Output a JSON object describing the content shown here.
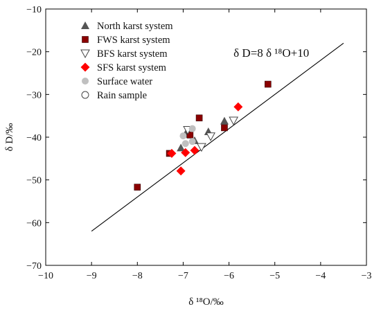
{
  "chart_data": {
    "type": "scatter",
    "title": "",
    "xlabel": "δ ¹⁸O/‰",
    "ylabel": "δ D/‰",
    "xlim": [
      -10,
      -3
    ],
    "ylim": [
      -70,
      -10
    ],
    "xticks": [
      -10,
      -9,
      -8,
      -7,
      -6,
      -5,
      -4,
      -3
    ],
    "yticks": [
      -70,
      -60,
      -50,
      -40,
      -30,
      -20,
      -10
    ],
    "xtick_labels": [
      "−10",
      "−9",
      "−8",
      "−7",
      "−6",
      "−5",
      "−4",
      "−3"
    ],
    "ytick_labels": [
      "−70",
      "−60",
      "−50",
      "−40",
      "−30",
      "−20",
      "−10"
    ],
    "grid": false,
    "legend_position": "top-left",
    "series": [
      {
        "name": "North karst system",
        "marker": "triangle-filled",
        "color": "#555555",
        "points": [
          [
            -7.05,
            -42.5
          ],
          [
            -6.95,
            -39.3
          ],
          [
            -6.75,
            -40.8
          ],
          [
            -6.45,
            -38.7
          ],
          [
            -6.1,
            -36.2
          ]
        ]
      },
      {
        "name": "FWS karst system",
        "marker": "square-filled",
        "color": "#8b0000",
        "points": [
          [
            -8.0,
            -51.7
          ],
          [
            -7.3,
            -43.8
          ],
          [
            -6.85,
            -39.5
          ],
          [
            -6.65,
            -35.5
          ],
          [
            -6.1,
            -37.8
          ],
          [
            -5.15,
            -27.6
          ]
        ]
      },
      {
        "name": "BFS karst system",
        "marker": "triangle-open-down",
        "color": "#444444",
        "points": [
          [
            -6.9,
            -38.3
          ],
          [
            -6.6,
            -42.3
          ],
          [
            -6.4,
            -39.8
          ],
          [
            -5.9,
            -36.1
          ]
        ]
      },
      {
        "name": "SFS karst system",
        "marker": "diamond-filled",
        "color": "#ff0000",
        "points": [
          [
            -7.25,
            -43.8
          ],
          [
            -7.05,
            -47.9
          ],
          [
            -6.95,
            -43.6
          ],
          [
            -6.75,
            -43.1
          ],
          [
            -5.8,
            -32.9
          ]
        ]
      },
      {
        "name": "Surface water",
        "marker": "circle-filled",
        "color": "#c0c0c0",
        "points": [
          [
            -7.0,
            -39.7
          ],
          [
            -6.95,
            -41.5
          ],
          [
            -6.8,
            -38.0
          ],
          [
            -6.8,
            -41.0
          ]
        ]
      },
      {
        "name": "Rain sample",
        "marker": "circle-open",
        "color": "#444444",
        "points": []
      }
    ],
    "lines": [
      {
        "label": "δ D=8 δ ¹⁸O+10",
        "slope": 8,
        "intercept": 10,
        "x_range": [
          -9,
          -3.5
        ]
      }
    ]
  }
}
